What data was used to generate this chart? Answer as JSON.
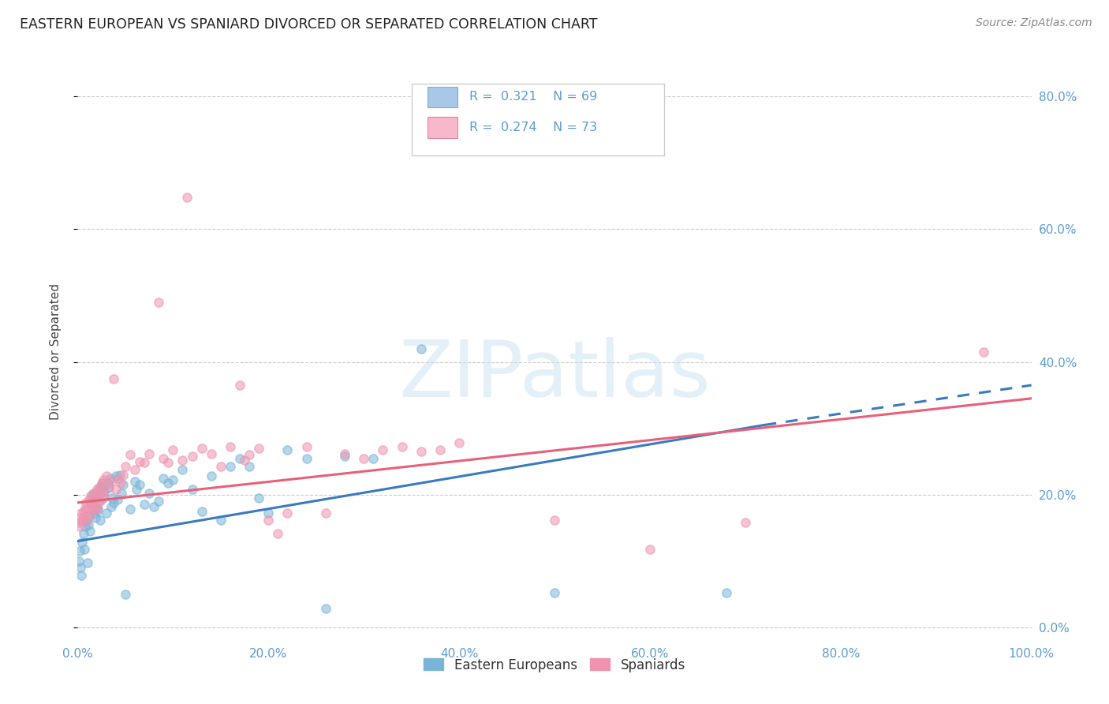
{
  "title": "EASTERN EUROPEAN VS SPANIARD DIVORCED OR SEPARATED CORRELATION CHART",
  "source": "Source: ZipAtlas.com",
  "ylabel": "Divorced or Separated",
  "watermark": "ZIPatlas",
  "legend_entries": [
    {
      "label": "Eastern Europeans",
      "R": "0.321",
      "N": "69",
      "color": "#a8c8e8",
      "edge": "#7aafd4"
    },
    {
      "label": "Spaniards",
      "R": "0.274",
      "N": "73",
      "color": "#f7b8cc",
      "edge": "#e8849c"
    }
  ],
  "blue_scatter_color": "#7ab5d8",
  "pink_scatter_color": "#f093af",
  "blue_line_color": "#3a7abf",
  "pink_line_color": "#e8607a",
  "axis_tick_color": "#5b9bd5",
  "grid_color": "#cccccc",
  "background_color": "#ffffff",
  "blue_scatter": [
    [
      0.001,
      0.1
    ],
    [
      0.002,
      0.115
    ],
    [
      0.003,
      0.09
    ],
    [
      0.004,
      0.078
    ],
    [
      0.005,
      0.128
    ],
    [
      0.006,
      0.142
    ],
    [
      0.007,
      0.118
    ],
    [
      0.008,
      0.152
    ],
    [
      0.009,
      0.16
    ],
    [
      0.01,
      0.098
    ],
    [
      0.011,
      0.155
    ],
    [
      0.012,
      0.168
    ],
    [
      0.013,
      0.145
    ],
    [
      0.014,
      0.188
    ],
    [
      0.015,
      0.198
    ],
    [
      0.016,
      0.185
    ],
    [
      0.017,
      0.172
    ],
    [
      0.018,
      0.202
    ],
    [
      0.019,
      0.165
    ],
    [
      0.02,
      0.18
    ],
    [
      0.021,
      0.176
    ],
    [
      0.022,
      0.19
    ],
    [
      0.023,
      0.208
    ],
    [
      0.024,
      0.162
    ],
    [
      0.025,
      0.212
    ],
    [
      0.026,
      0.218
    ],
    [
      0.027,
      0.195
    ],
    [
      0.028,
      0.205
    ],
    [
      0.03,
      0.172
    ],
    [
      0.032,
      0.218
    ],
    [
      0.033,
      0.21
    ],
    [
      0.034,
      0.225
    ],
    [
      0.035,
      0.182
    ],
    [
      0.036,
      0.195
    ],
    [
      0.038,
      0.188
    ],
    [
      0.04,
      0.228
    ],
    [
      0.042,
      0.192
    ],
    [
      0.044,
      0.23
    ],
    [
      0.046,
      0.202
    ],
    [
      0.048,
      0.215
    ],
    [
      0.05,
      0.05
    ],
    [
      0.055,
      0.178
    ],
    [
      0.06,
      0.22
    ],
    [
      0.062,
      0.208
    ],
    [
      0.065,
      0.215
    ],
    [
      0.07,
      0.185
    ],
    [
      0.075,
      0.202
    ],
    [
      0.08,
      0.182
    ],
    [
      0.085,
      0.19
    ],
    [
      0.09,
      0.225
    ],
    [
      0.095,
      0.218
    ],
    [
      0.1,
      0.222
    ],
    [
      0.11,
      0.238
    ],
    [
      0.12,
      0.208
    ],
    [
      0.13,
      0.175
    ],
    [
      0.14,
      0.228
    ],
    [
      0.15,
      0.162
    ],
    [
      0.16,
      0.242
    ],
    [
      0.17,
      0.255
    ],
    [
      0.18,
      0.242
    ],
    [
      0.19,
      0.195
    ],
    [
      0.2,
      0.172
    ],
    [
      0.22,
      0.268
    ],
    [
      0.24,
      0.255
    ],
    [
      0.26,
      0.028
    ],
    [
      0.28,
      0.258
    ],
    [
      0.31,
      0.255
    ],
    [
      0.36,
      0.42
    ],
    [
      0.5,
      0.052
    ],
    [
      0.68,
      0.052
    ]
  ],
  "pink_scatter": [
    [
      0.001,
      0.158
    ],
    [
      0.002,
      0.152
    ],
    [
      0.003,
      0.165
    ],
    [
      0.004,
      0.172
    ],
    [
      0.005,
      0.16
    ],
    [
      0.006,
      0.175
    ],
    [
      0.007,
      0.168
    ],
    [
      0.008,
      0.18
    ],
    [
      0.009,
      0.188
    ],
    [
      0.01,
      0.162
    ],
    [
      0.011,
      0.178
    ],
    [
      0.012,
      0.192
    ],
    [
      0.013,
      0.17
    ],
    [
      0.014,
      0.198
    ],
    [
      0.015,
      0.182
    ],
    [
      0.016,
      0.202
    ],
    [
      0.017,
      0.178
    ],
    [
      0.018,
      0.195
    ],
    [
      0.019,
      0.188
    ],
    [
      0.02,
      0.208
    ],
    [
      0.021,
      0.18
    ],
    [
      0.022,
      0.2
    ],
    [
      0.023,
      0.212
    ],
    [
      0.024,
      0.19
    ],
    [
      0.025,
      0.218
    ],
    [
      0.026,
      0.205
    ],
    [
      0.027,
      0.222
    ],
    [
      0.028,
      0.198
    ],
    [
      0.03,
      0.228
    ],
    [
      0.032,
      0.212
    ],
    [
      0.035,
      0.22
    ],
    [
      0.038,
      0.375
    ],
    [
      0.04,
      0.208
    ],
    [
      0.042,
      0.225
    ],
    [
      0.045,
      0.218
    ],
    [
      0.048,
      0.23
    ],
    [
      0.05,
      0.242
    ],
    [
      0.055,
      0.26
    ],
    [
      0.06,
      0.238
    ],
    [
      0.065,
      0.25
    ],
    [
      0.07,
      0.248
    ],
    [
      0.075,
      0.262
    ],
    [
      0.085,
      0.49
    ],
    [
      0.09,
      0.255
    ],
    [
      0.095,
      0.248
    ],
    [
      0.1,
      0.268
    ],
    [
      0.11,
      0.252
    ],
    [
      0.115,
      0.648
    ],
    [
      0.12,
      0.258
    ],
    [
      0.13,
      0.27
    ],
    [
      0.14,
      0.262
    ],
    [
      0.15,
      0.242
    ],
    [
      0.16,
      0.272
    ],
    [
      0.17,
      0.365
    ],
    [
      0.175,
      0.252
    ],
    [
      0.18,
      0.26
    ],
    [
      0.19,
      0.27
    ],
    [
      0.2,
      0.162
    ],
    [
      0.21,
      0.142
    ],
    [
      0.22,
      0.172
    ],
    [
      0.24,
      0.272
    ],
    [
      0.26,
      0.172
    ],
    [
      0.28,
      0.262
    ],
    [
      0.3,
      0.255
    ],
    [
      0.32,
      0.268
    ],
    [
      0.34,
      0.272
    ],
    [
      0.36,
      0.265
    ],
    [
      0.38,
      0.268
    ],
    [
      0.4,
      0.278
    ],
    [
      0.5,
      0.162
    ],
    [
      0.6,
      0.118
    ],
    [
      0.7,
      0.158
    ],
    [
      0.95,
      0.415
    ]
  ],
  "blue_line": {
    "x0": 0.0,
    "y0": 0.13,
    "x1": 0.72,
    "y1": 0.305
  },
  "blue_dashed_line": {
    "x0": 0.72,
    "y0": 0.305,
    "x1": 1.0,
    "y1": 0.365
  },
  "pink_line": {
    "x0": 0.0,
    "y0": 0.188,
    "x1": 1.0,
    "y1": 0.345
  },
  "xlim": [
    0.0,
    1.0
  ],
  "ylim": [
    -0.02,
    0.85
  ],
  "xtick_positions": [
    0.0,
    0.2,
    0.4,
    0.6,
    0.8,
    1.0
  ],
  "xtick_labels": [
    "0.0%",
    "20.0%",
    "40.0%",
    "60.0%",
    "80.0%",
    "100.0%"
  ],
  "ytick_positions": [
    0.0,
    0.2,
    0.4,
    0.6,
    0.8
  ],
  "ytick_labels": [
    "0.0%",
    "20.0%",
    "40.0%",
    "60.0%",
    "80.0%"
  ]
}
